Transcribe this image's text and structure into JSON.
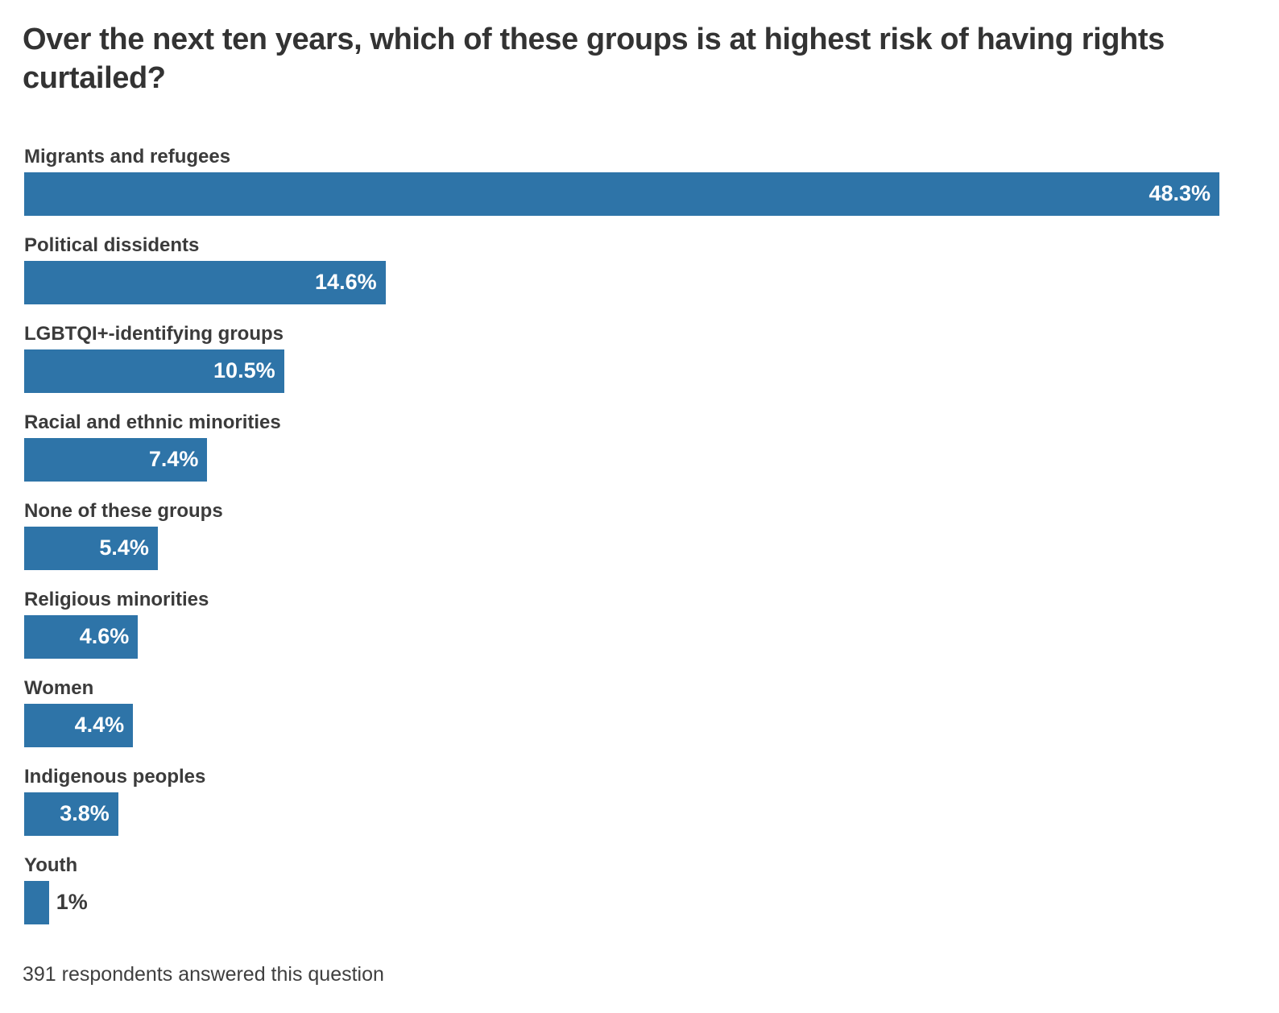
{
  "chart_data": {
    "type": "bar",
    "orientation": "horizontal",
    "title": "Over the next ten years, which of these groups is at highest risk of having rights curtailed?",
    "categories": [
      "Migrants and refugees",
      "Political dissidents",
      "LGBTQI+-identifying groups",
      "Racial and ethnic minorities",
      "None of these groups",
      "Religious minorities",
      "Women",
      "Indigenous peoples",
      "Youth"
    ],
    "values": [
      48.3,
      14.6,
      10.5,
      7.4,
      5.4,
      4.6,
      4.4,
      3.8,
      1
    ],
    "value_labels": [
      "48.3%",
      "14.6%",
      "10.5%",
      "7.4%",
      "5.4%",
      "4.6%",
      "4.4%",
      "3.8%",
      "1%"
    ],
    "xlabel": "",
    "ylabel": "",
    "xlim": [
      0,
      48.3
    ],
    "grid": false,
    "legend": false,
    "bar_color": "#2e74a8",
    "value_label_inside_color": "#ffffff",
    "value_label_outside_color": "#3b3b3b",
    "footnote": "391 respondents answered this question"
  }
}
